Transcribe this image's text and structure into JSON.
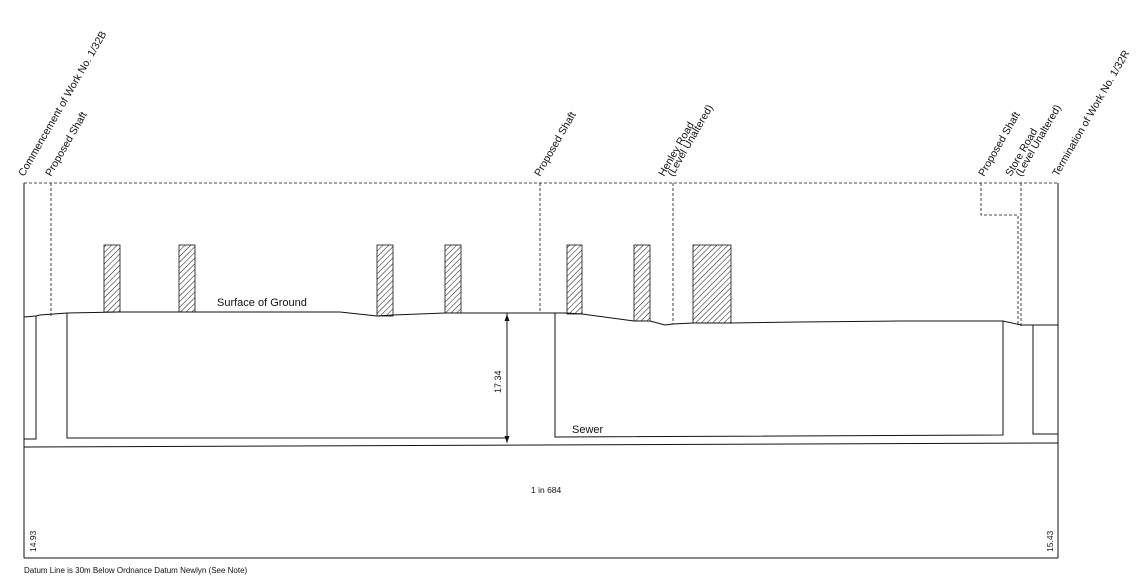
{
  "labels": {
    "commencement": "Commencement of Work No. 1/32B",
    "shaft_1": "Proposed Shaft",
    "shaft_2": "Proposed Shaft",
    "henley_road": "Henley Road",
    "henley_road_level": "(Level Unaltered)",
    "shaft_3": "Proposed Shaft",
    "store_road": "Store Road",
    "store_road_level": "(Level Unaltered)",
    "termination": "Termination of Work No. 1/32R",
    "surface": "Surface of Ground",
    "sewer": "Sewer",
    "depth": "17.34",
    "gradient": "1 in 684",
    "datum_left": "14.93",
    "datum_right": "15.43"
  },
  "note": "Datum Line is 30m Below Ordnance Datum Newlyn (See Note)",
  "colors": {
    "line": "#111111",
    "background": "#ffffff"
  }
}
